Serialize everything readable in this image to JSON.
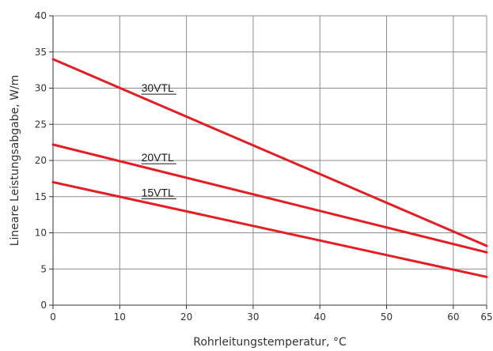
{
  "chart_data": {
    "type": "line",
    "title": "",
    "xlabel": "Rohrleitungstemperatur, °C",
    "ylabel": "Lineare Leistungsabgabe, W/m",
    "xlim": [
      0,
      65
    ],
    "ylim": [
      0,
      40
    ],
    "x_ticks": [
      0,
      10,
      20,
      30,
      40,
      50,
      60,
      65
    ],
    "y_ticks": [
      0,
      5,
      10,
      15,
      20,
      25,
      30,
      35,
      40
    ],
    "grid": true,
    "legend": "inline labels",
    "line_color": "#e31e24",
    "series": [
      {
        "name": "30VTL",
        "x": [
          0,
          65
        ],
        "y": [
          34.0,
          8.2
        ]
      },
      {
        "name": "20VTL",
        "x": [
          0,
          65
        ],
        "y": [
          22.2,
          7.3
        ]
      },
      {
        "name": "15VTL",
        "x": [
          0,
          65
        ],
        "y": [
          17.0,
          3.9
        ]
      }
    ]
  }
}
